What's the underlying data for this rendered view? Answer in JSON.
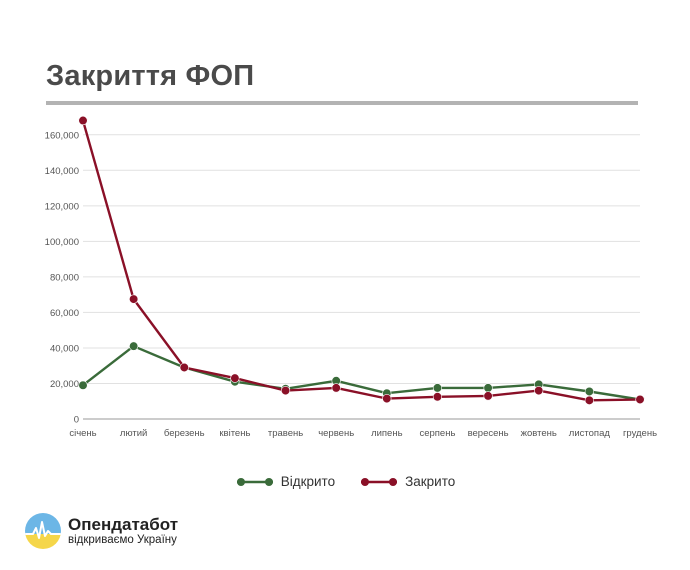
{
  "header": {
    "title": "Закриття ФОП"
  },
  "colors": {
    "opened": "#3a6b3a",
    "closed": "#8a1027",
    "grid": "#e1e1e1",
    "title_rule": "#b3b3b3"
  },
  "chart_data": {
    "type": "line",
    "title": "",
    "xlabel": "",
    "ylabel": "",
    "categories": [
      "січень",
      "лютий",
      "березень",
      "квітень",
      "травень",
      "червень",
      "липень",
      "серпень",
      "вересень",
      "жовтень",
      "листопад",
      "грудень"
    ],
    "series": [
      {
        "name": "Відкрито",
        "color": "#3a6b3a",
        "values": [
          19000,
          41000,
          29000,
          21000,
          17000,
          21500,
          14500,
          17500,
          17500,
          19500,
          15500,
          11000
        ]
      },
      {
        "name": "Закрито",
        "color": "#8a1027",
        "values": [
          168000,
          67500,
          29000,
          23000,
          16000,
          17500,
          11500,
          12500,
          13000,
          16000,
          10500,
          11000
        ]
      }
    ],
    "yticks": [
      "0",
      "20,000",
      "40,000",
      "60,000",
      "80,000",
      "100,000",
      "120,000",
      "140,000",
      "160,000"
    ],
    "ylim": [
      0,
      170000
    ],
    "grid": true,
    "legend": "bottom-center"
  },
  "branding": {
    "name": "Опендатабот",
    "tagline": "відкриваємо Україну"
  }
}
